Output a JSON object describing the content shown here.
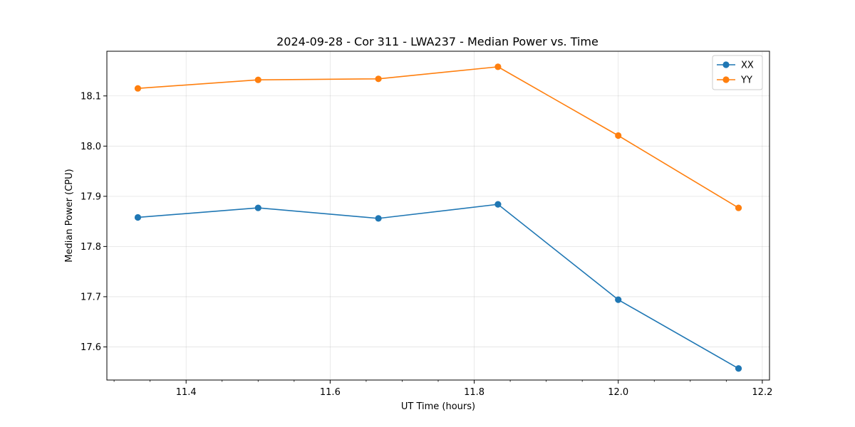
{
  "chart_data": {
    "type": "line",
    "title": "2024-09-28 - Cor 311 - LWA237 - Median Power vs. Time",
    "xlabel": "UT Time (hours)",
    "ylabel": "Median Power (CPU)",
    "xlim": [
      11.29,
      12.21
    ],
    "ylim": [
      17.534,
      18.189
    ],
    "xticks": [
      11.4,
      11.6,
      11.8,
      12.0,
      12.2
    ],
    "xtick_labels": [
      "11.4",
      "11.6",
      "11.8",
      "12.0",
      "12.2"
    ],
    "xminor_step": 0.05,
    "yticks": [
      17.6,
      17.7,
      17.8,
      17.9,
      18.0,
      18.1
    ],
    "ytick_labels": [
      "17.6",
      "17.7",
      "17.8",
      "17.9",
      "18.0",
      "18.1"
    ],
    "grid": true,
    "legend_position": "top-right",
    "x": [
      11.333,
      11.5,
      11.667,
      11.833,
      12.0,
      12.167
    ],
    "series": [
      {
        "name": "XX",
        "color": "#1f77b4",
        "marker": "circle",
        "values": [
          17.858,
          17.877,
          17.856,
          17.884,
          17.694,
          17.557
        ]
      },
      {
        "name": "YY",
        "color": "#ff7f0e",
        "marker": "circle",
        "values": [
          18.115,
          18.132,
          18.134,
          18.158,
          18.021,
          17.877
        ]
      }
    ]
  }
}
